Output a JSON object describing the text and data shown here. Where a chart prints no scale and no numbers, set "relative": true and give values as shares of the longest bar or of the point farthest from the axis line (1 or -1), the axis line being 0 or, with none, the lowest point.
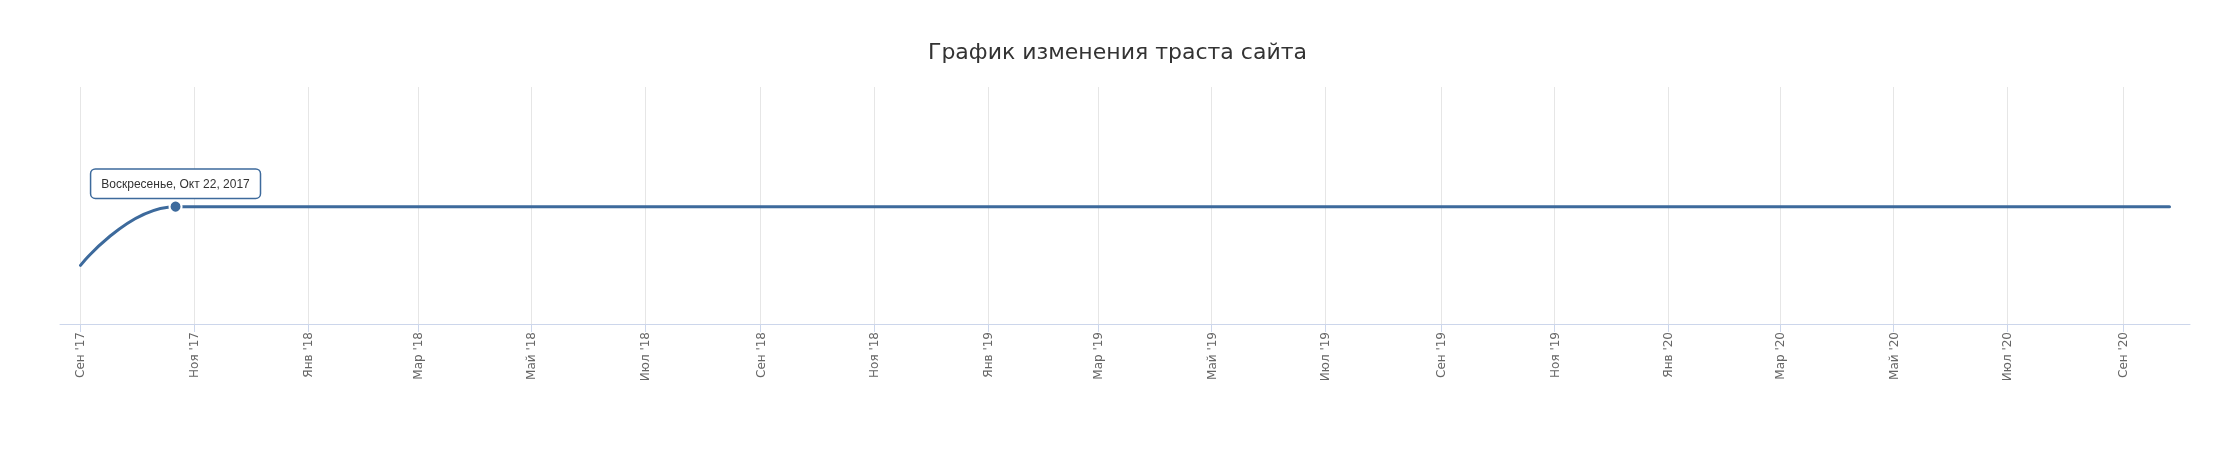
{
  "chart_data": {
    "type": "line",
    "title": "График изменения траста сайта",
    "relative": true,
    "x": [
      "2017-09-01",
      "2017-10-22",
      "2020-09-26"
    ],
    "series": [
      {
        "color": "#3d6a9c",
        "values": [
          0.5,
          1,
          1
        ]
      }
    ],
    "xlim": [
      "2017-08-21",
      "2020-10-07"
    ],
    "xticks": [
      {
        "value": "2017-09",
        "label": "Сен '17"
      },
      {
        "value": "2017-11",
        "label": "Ноя '17"
      },
      {
        "value": "2018-01",
        "label": "Янв '18"
      },
      {
        "value": "2018-03",
        "label": "Мар '18"
      },
      {
        "value": "2018-05",
        "label": "Май '18"
      },
      {
        "value": "2018-07",
        "label": "Июл '18"
      },
      {
        "value": "2018-09",
        "label": "Сен '18"
      },
      {
        "value": "2018-11",
        "label": "Ноя '18"
      },
      {
        "value": "2019-01",
        "label": "Янв '19"
      },
      {
        "value": "2019-03",
        "label": "Мар '19"
      },
      {
        "value": "2019-05",
        "label": "Май '19"
      },
      {
        "value": "2019-07",
        "label": "Июл '19"
      },
      {
        "value": "2019-09",
        "label": "Сен '19"
      },
      {
        "value": "2019-11",
        "label": "Ноя '19"
      },
      {
        "value": "2020-01",
        "label": "Янв '20"
      },
      {
        "value": "2020-03",
        "label": "Мар '20"
      },
      {
        "value": "2020-05",
        "label": "Май '20"
      },
      {
        "value": "2020-07",
        "label": "Июл '20"
      },
      {
        "value": "2020-09",
        "label": "Сен '20"
      }
    ],
    "grid": "x",
    "marker": "none",
    "line_style": "solid",
    "annotations": [
      {
        "text": "Воскресенье, Окт 22, 2017",
        "x": "2017-10-22",
        "y": 1
      }
    ]
  }
}
